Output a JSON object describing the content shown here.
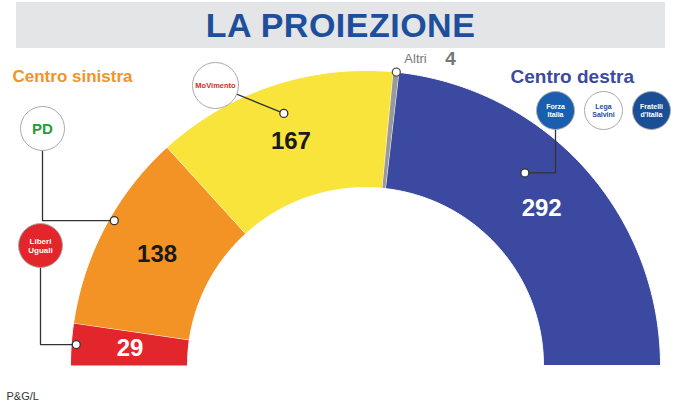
{
  "chart_data": {
    "type": "pie",
    "title": "LA PROIEZIONE",
    "categories": [
      "Liberi Uguali",
      "PD",
      "MoVimento",
      "Altri",
      "Centro destra"
    ],
    "values": [
      29,
      138,
      167,
      4,
      292
    ],
    "colors": [
      "#e3262b",
      "#f39325",
      "#f8e43a",
      "#9a9a9a",
      "#3b4aa0"
    ],
    "annotations": [
      "Centro sinistra"
    ],
    "logos": [
      "Forza Italia",
      "Lega Salvini",
      "Fratelli d'Italia"
    ],
    "source": "P&G/L",
    "data_labels": true
  }
}
